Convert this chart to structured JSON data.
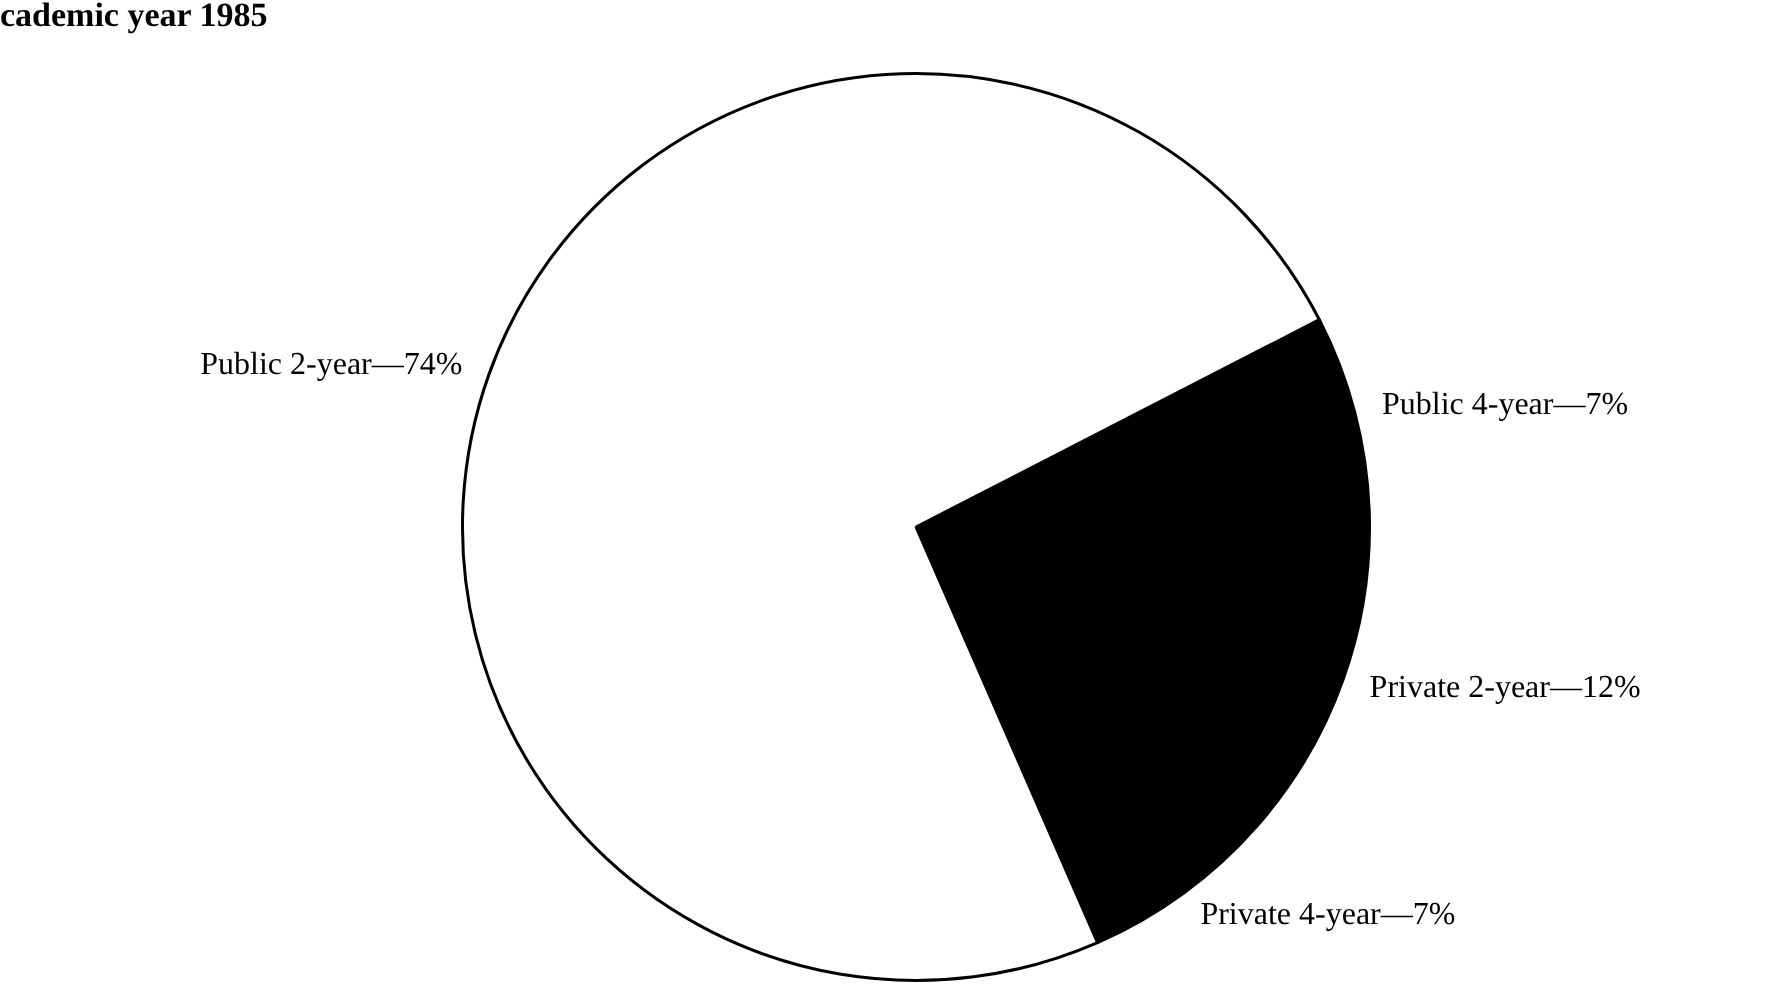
{
  "chart_data": {
    "type": "pie",
    "title": "cademic year 1985",
    "categories": [
      "Public 4-year—7%",
      "Private 2-year—12%",
      "Private 4-year—7%",
      "Public 2-year—74%"
    ],
    "values": [
      7,
      12,
      7,
      74
    ],
    "colors": [
      "#000000",
      "#000000",
      "#000000",
      "#ffffff"
    ]
  }
}
